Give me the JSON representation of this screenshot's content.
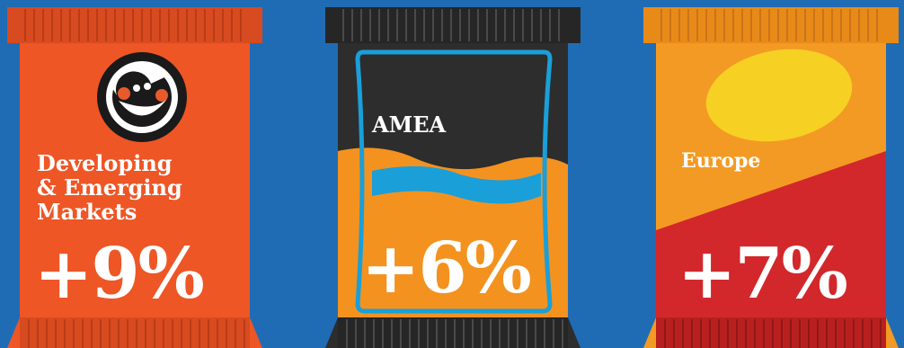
{
  "colors": {
    "background": "#1f6cb4",
    "pack_dem": "#ee5626",
    "pack_amea_dark": "#2d2d2d",
    "pack_amea_orange": "#f4921f",
    "pack_amea_stripe": "#1a9fd9",
    "pack_europe_orange": "#f39a24",
    "pack_europe_red": "#d2282c",
    "pack_europe_oval": "#f6d023"
  },
  "packs": [
    {
      "region": "Developing & Emerging Markets",
      "lines": [
        "Developing",
        "& Emerging",
        "Markets"
      ],
      "change": "+9%",
      "icon": "smiley-logo-icon"
    },
    {
      "region": "AMEA",
      "change": "+6%"
    },
    {
      "region": "Europe",
      "change": "+7%"
    }
  ]
}
